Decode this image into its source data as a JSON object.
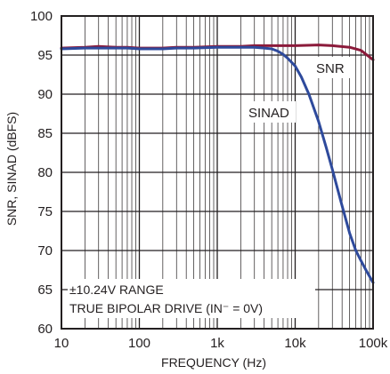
{
  "chart_data": {
    "type": "line",
    "xlabel": "FREQUENCY (Hz)",
    "ylabel": "SNR, SINAD (dBFS)",
    "x_scale": "log",
    "xlim": [
      10,
      100000
    ],
    "ylim": [
      60,
      100
    ],
    "grid": true,
    "x_ticks": [
      10,
      100,
      1000,
      10000,
      100000
    ],
    "x_tick_labels": [
      "10",
      "100",
      "1k",
      "10k",
      "100k"
    ],
    "y_ticks": [
      60,
      65,
      70,
      75,
      80,
      85,
      90,
      95,
      100
    ],
    "y_tick_labels": [
      "60",
      "65",
      "70",
      "75",
      "80",
      "85",
      "90",
      "95",
      "100"
    ],
    "annotations": [
      "±10.24V RANGE",
      "TRUE BIPOLAR DRIVE (IN⁻ = 0V)"
    ],
    "colors": {
      "SNR": "#8b1a3a",
      "SINAD": "#2e4a9c",
      "grid": "#231f20"
    },
    "series": [
      {
        "name": "SNR",
        "x": [
          10,
          20,
          30,
          50,
          70,
          100,
          200,
          300,
          500,
          1000,
          2000,
          3000,
          5000,
          7000,
          10000,
          20000,
          30000,
          50000,
          70000,
          100000
        ],
        "y": [
          95.9,
          96.0,
          96.1,
          96.0,
          96.0,
          95.9,
          95.9,
          96.0,
          96.0,
          96.1,
          96.1,
          96.2,
          96.2,
          96.2,
          96.2,
          96.3,
          96.2,
          96.0,
          95.6,
          94.4
        ]
      },
      {
        "name": "SINAD",
        "x": [
          10,
          20,
          30,
          50,
          70,
          100,
          200,
          300,
          500,
          1000,
          2000,
          3000,
          4000,
          5000,
          6000,
          7000,
          8000,
          10000,
          12000,
          15000,
          20000,
          25000,
          30000,
          40000,
          50000,
          60000,
          70000,
          80000,
          100000
        ],
        "y": [
          95.8,
          95.9,
          95.9,
          95.9,
          95.9,
          95.8,
          95.8,
          95.9,
          95.9,
          96.0,
          96.0,
          96.0,
          95.9,
          95.8,
          95.5,
          95.1,
          94.6,
          93.6,
          92.2,
          90.0,
          86.5,
          83.2,
          80.4,
          75.7,
          72.2,
          70.0,
          68.7,
          67.6,
          65.9
        ]
      }
    ]
  }
}
